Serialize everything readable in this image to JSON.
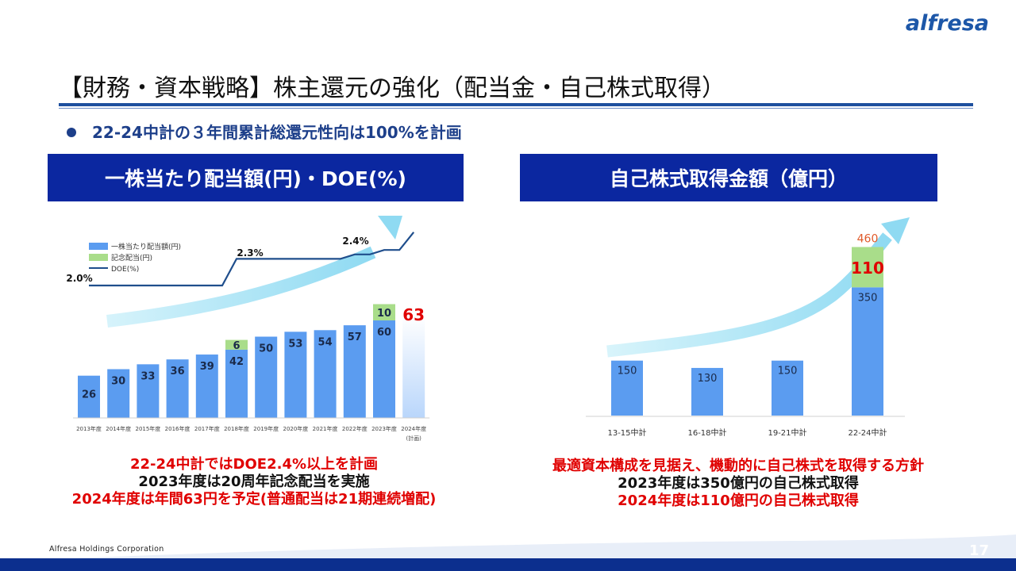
{
  "header": {
    "logo": "alfresa",
    "title": "【財務・資本戦略】株主還元の強化（配当金・自己株式取得）",
    "bullet": "22-24中計の３年間累計総還元性向は100%を計画"
  },
  "left_panel": {
    "heading": "一株当たり配当額(円)・DOE(%)",
    "caption": [
      "22-24中計ではDOE2.4%以上を計画",
      "2023年度は20周年記念配当を実施",
      "2024年度は年間63円を予定(普通配当は21期連続増配)"
    ]
  },
  "right_panel": {
    "heading": "自己株式取得金額（億円）",
    "caption": [
      "最適資本構成を見据え、機動的に自己株式を取得する方針",
      "2023年度は350億円の自己株式取得",
      "2024年度は110億円の自己株式取得"
    ]
  },
  "chart_data": [
    {
      "type": "bar",
      "title": "一株当たり配当額(円)・DOE(%)",
      "categories": [
        "2013年度",
        "2014年度",
        "2015年度",
        "2016年度",
        "2017年度",
        "2018年度",
        "2019年度",
        "2020年度",
        "2021年度",
        "2022年度",
        "2023年度",
        "2024年度"
      ],
      "category_note_last": "(計画)",
      "stacked": true,
      "series": [
        {
          "name": "一株当たり配当額(円)",
          "values": [
            26,
            30,
            33,
            36,
            39,
            42,
            50,
            53,
            54,
            57,
            60,
            63
          ],
          "color": "#5b9cf0"
        },
        {
          "name": "記念配当(円)",
          "values": [
            0,
            0,
            0,
            0,
            0,
            6,
            0,
            0,
            0,
            0,
            10,
            0
          ],
          "color": "#a9dd8a"
        }
      ],
      "planned_value_label": "63",
      "line": {
        "name": "DOE(%)",
        "values": [
          2.0,
          2.0,
          2.0,
          2.0,
          2.0,
          2.3,
          2.3,
          2.3,
          2.3,
          2.35,
          2.4,
          2.6
        ],
        "labels": [
          {
            "index": 0,
            "text": "2.0%"
          },
          {
            "index": 5,
            "text": "2.3%"
          },
          {
            "index": 10,
            "text": "2.4%"
          }
        ],
        "color": "#1f4e8c"
      }
    },
    {
      "type": "bar",
      "title": "自己株式取得金額（億円）",
      "categories": [
        "13-15中計",
        "16-18中計",
        "19-21中計",
        "22-24中計"
      ],
      "stacked": true,
      "series": [
        {
          "name": "",
          "values": [
            150,
            130,
            150,
            350
          ],
          "color": "#5b9cf0"
        },
        {
          "name": "",
          "values": [
            0,
            0,
            0,
            110
          ],
          "color": "#a9dd8a"
        }
      ],
      "total_labels": [
        {
          "index": 3,
          "text": "460"
        }
      ]
    }
  ],
  "footer": {
    "company": "Alfresa Holdings Corporation",
    "page": "17"
  }
}
